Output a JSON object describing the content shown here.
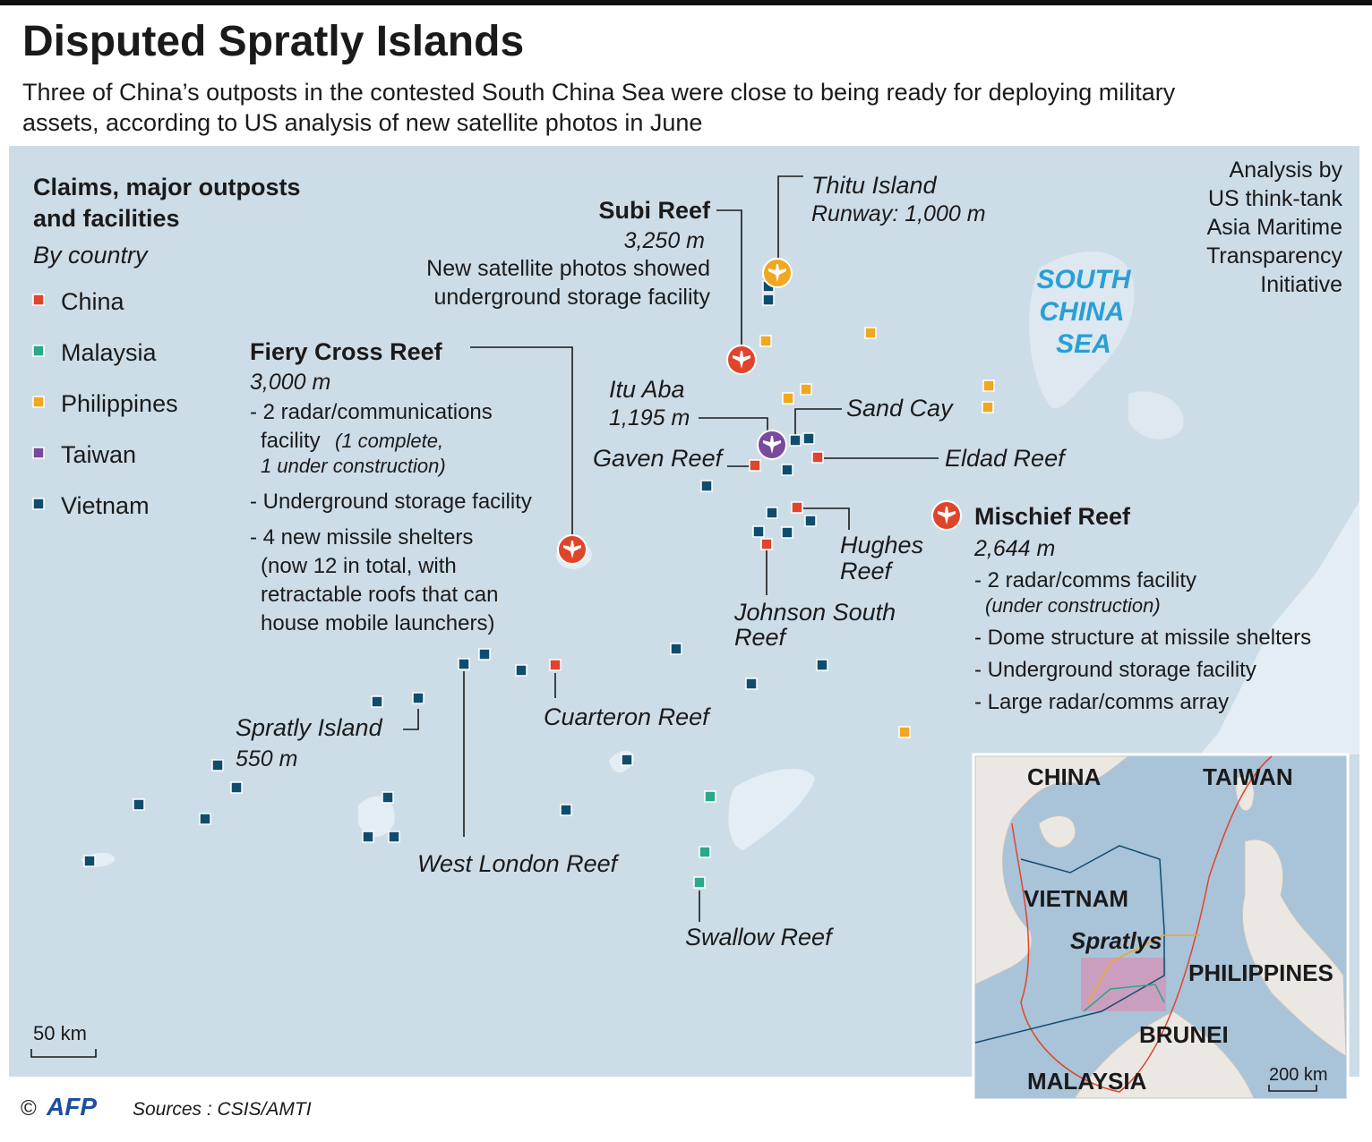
{
  "header": {
    "title": "Disputed Spratly Islands",
    "subtitle": [
      "Three of China’s outposts in the contested South China Sea were close to being ready for deploying military",
      "assets, according to US analysis of new satellite photos in June"
    ]
  },
  "legend": {
    "title": [
      "Claims, major outposts",
      "and facilities"
    ],
    "subtitle": "By country",
    "items": [
      {
        "label": "China",
        "color": "#e0452c"
      },
      {
        "label": "Malaysia",
        "color": "#2aa88a"
      },
      {
        "label": "Philippines",
        "color": "#f0a820"
      },
      {
        "label": "Taiwan",
        "color": "#7a4a9c"
      },
      {
        "label": "Vietnam",
        "color": "#0f4d6e"
      }
    ]
  },
  "attribution": [
    "Analysis by",
    "US think-tank",
    "Asia Maritime",
    "Transparency",
    "Initiative"
  ],
  "sea_label": [
    "SOUTH",
    "CHINA",
    "SEA"
  ],
  "places": {
    "subi": {
      "name": "Subi Reef",
      "runway": "3,250 m",
      "notes": [
        "New satellite photos showed",
        "underground storage facility"
      ]
    },
    "thitu": {
      "name": "Thitu Island",
      "runway": "Runway: 1,000 m"
    },
    "fiery_cross": {
      "name": "Fiery Cross Reef",
      "runway": "3,000 m",
      "notes": [
        "- 2 radar/communications",
        "facility",
        "(1 complete,",
        "1 under construction)",
        "- Underground storage facility",
        "- 4 new missile shelters",
        "(now 12 in total, with",
        "retractable roofs that can",
        "house mobile launchers)"
      ]
    },
    "itu_aba": {
      "name": "Itu Aba",
      "runway": "1,195 m"
    },
    "sand_cay": {
      "name": "Sand Cay"
    },
    "eldad": {
      "name": "Eldad Reef"
    },
    "gaven": {
      "name": "Gaven Reef"
    },
    "mischief": {
      "name": "Mischief Reef",
      "runway": "2,644 m",
      "notes": [
        "- 2 radar/comms facility",
        "(under construction)",
        "- Dome structure at missile shelters",
        "- Underground storage facility",
        "- Large radar/comms array"
      ]
    },
    "hughes": {
      "name": [
        "Hughes",
        "Reef"
      ]
    },
    "johnson_south": {
      "name": [
        "Johnson South",
        "Reef"
      ]
    },
    "cuarteron": {
      "name": "Cuarteron Reef"
    },
    "spratly_island": {
      "name": "Spratly Island",
      "runway": "550 m"
    },
    "west_london": {
      "name": "West London Reef"
    },
    "swallow": {
      "name": "Swallow Reef"
    }
  },
  "scale": "50 km",
  "inset": {
    "labels": [
      "CHINA",
      "TAIWAN",
      "VIETNAM",
      "Spratlys",
      "PHILIPPINES",
      "BRUNEI",
      "MALAYSIA"
    ],
    "scale": "200 km"
  },
  "footer": {
    "copyright": "©",
    "agency": "AFP",
    "sources": "Sources : CSIS/AMTI"
  }
}
